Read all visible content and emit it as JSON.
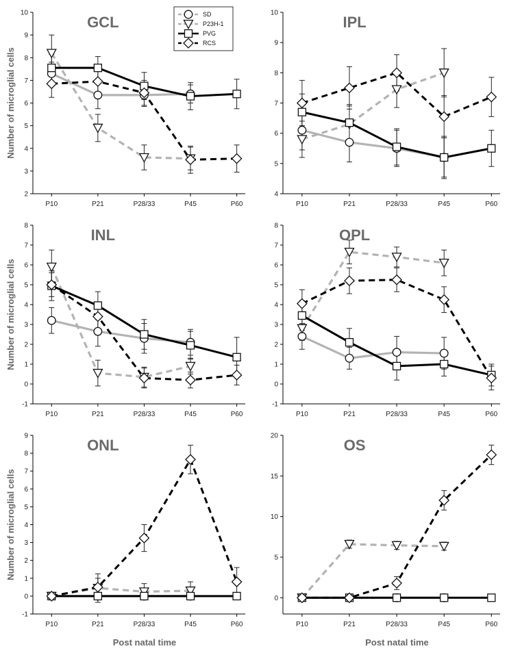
{
  "figure": {
    "categories": [
      "P10",
      "P21",
      "P28/33",
      "P45",
      "P60"
    ],
    "ylabel": "Number of microglial cells",
    "xlabel": "Post natal time"
  },
  "legend": [
    {
      "name": "SD",
      "marker": "circle",
      "color": "#b3b3b3",
      "dashed": true
    },
    {
      "name": "P23H-1",
      "marker": "triangle",
      "color": "#b3b3b3",
      "dashed": true
    },
    {
      "name": "PVG",
      "marker": "square",
      "color": "#000000",
      "dashed": false
    },
    {
      "name": "RCS",
      "marker": "diamond",
      "color": "#000000",
      "dashed": true
    }
  ],
  "chart_data": [
    {
      "type": "line",
      "title": "GCL",
      "xlabel": "",
      "ylabel": "Number of microglial cells",
      "categories": [
        "P10",
        "P21",
        "P28/33",
        "P45",
        "P60"
      ],
      "ylim": [
        2,
        10
      ],
      "yticks": [
        2,
        3,
        4,
        5,
        6,
        7,
        8,
        9,
        10
      ],
      "series": [
        {
          "name": "SD",
          "values": [
            7.3,
            6.35,
            6.35,
            6.4,
            null
          ],
          "errors": [
            0.5,
            0.6,
            0.5,
            0.4,
            null
          ]
        },
        {
          "name": "P23H-1",
          "values": [
            8.2,
            4.9,
            3.6,
            3.55,
            null
          ],
          "errors": [
            0.8,
            0.6,
            0.55,
            0.5,
            null
          ]
        },
        {
          "name": "PVG",
          "values": [
            7.55,
            7.55,
            6.75,
            6.3,
            6.4
          ],
          "errors": [
            0.6,
            0.5,
            0.6,
            0.6,
            0.65
          ]
        },
        {
          "name": "RCS",
          "values": [
            6.85,
            6.95,
            6.45,
            3.5,
            3.55
          ],
          "errors": [
            0.6,
            0.55,
            0.55,
            0.6,
            0.6
          ]
        }
      ]
    },
    {
      "type": "line",
      "title": "IPL",
      "xlabel": "",
      "ylabel": "",
      "categories": [
        "P10",
        "P21",
        "P28/33",
        "P45",
        "P60"
      ],
      "ylim": [
        4,
        10
      ],
      "yticks": [
        4,
        5,
        6,
        7,
        8,
        9,
        10
      ],
      "series": [
        {
          "name": "SD",
          "values": [
            6.1,
            5.7,
            5.5,
            5.2,
            null
          ],
          "errors": [
            0.65,
            0.65,
            0.6,
            0.7,
            null
          ]
        },
        {
          "name": "P23H-1",
          "values": [
            5.8,
            6.3,
            7.45,
            8.0,
            null
          ],
          "errors": [
            0.6,
            0.6,
            0.6,
            0.8,
            null
          ]
        },
        {
          "name": "PVG",
          "values": [
            6.7,
            6.35,
            5.55,
            5.2,
            5.5
          ],
          "errors": [
            0.6,
            0.6,
            0.6,
            0.65,
            0.6
          ]
        },
        {
          "name": "RCS",
          "values": [
            7.0,
            7.5,
            8.0,
            6.55,
            7.2
          ],
          "errors": [
            0.75,
            0.7,
            0.6,
            0.7,
            0.65
          ]
        }
      ]
    },
    {
      "type": "line",
      "title": "INL",
      "xlabel": "",
      "ylabel": "Number of microglial cells",
      "categories": [
        "P10",
        "P21",
        "P28/33",
        "P45",
        "P60"
      ],
      "ylim": [
        -1,
        8
      ],
      "yticks": [
        -1,
        0,
        1,
        2,
        3,
        4,
        5,
        6,
        7,
        8
      ],
      "series": [
        {
          "name": "SD",
          "values": [
            3.2,
            2.65,
            2.3,
            2.1,
            null
          ],
          "errors": [
            0.65,
            0.75,
            0.75,
            0.65,
            null
          ]
        },
        {
          "name": "P23H-1",
          "values": [
            5.9,
            0.55,
            0.35,
            0.9,
            null
          ],
          "errors": [
            0.85,
            0.65,
            0.5,
            0.4,
            null
          ]
        },
        {
          "name": "PVG",
          "values": [
            4.95,
            3.95,
            2.5,
            1.95,
            1.35
          ],
          "errors": [
            0.75,
            0.7,
            0.75,
            0.7,
            1.0
          ]
        },
        {
          "name": "RCS",
          "values": [
            5.0,
            3.4,
            0.3,
            0.2,
            0.45
          ],
          "errors": [
            0.6,
            0.6,
            0.5,
            0.4,
            0.5
          ]
        }
      ]
    },
    {
      "type": "line",
      "title": "OPL",
      "xlabel": "",
      "ylabel": "",
      "categories": [
        "P10",
        "P21",
        "P28/33",
        "P45",
        "P60"
      ],
      "ylim": [
        -1,
        8
      ],
      "yticks": [
        -1,
        0,
        1,
        2,
        3,
        4,
        5,
        6,
        7,
        8
      ],
      "series": [
        {
          "name": "SD",
          "values": [
            2.4,
            1.3,
            1.6,
            1.55,
            null
          ],
          "errors": [
            0.65,
            0.55,
            0.8,
            0.8,
            null
          ]
        },
        {
          "name": "P23H-1",
          "values": [
            2.8,
            6.65,
            6.4,
            6.1,
            null
          ],
          "errors": [
            0.6,
            0.6,
            0.5,
            0.65,
            null
          ]
        },
        {
          "name": "PVG",
          "values": [
            3.45,
            2.1,
            0.9,
            1.0,
            0.45
          ],
          "errors": [
            0.75,
            0.7,
            0.7,
            0.6,
            0.55
          ]
        },
        {
          "name": "RCS",
          "values": [
            4.05,
            5.2,
            5.25,
            4.25,
            0.3
          ],
          "errors": [
            0.7,
            0.65,
            0.6,
            0.65,
            0.6
          ]
        }
      ]
    },
    {
      "type": "line",
      "title": "ONL",
      "xlabel": "Post natal time",
      "ylabel": "Number of microglial cells",
      "categories": [
        "P10",
        "P21",
        "P28/33",
        "P45",
        "P60"
      ],
      "ylim": [
        -1,
        9
      ],
      "yticks": [
        -1,
        0,
        1,
        2,
        3,
        4,
        5,
        6,
        7,
        8,
        9
      ],
      "series": [
        {
          "name": "SD",
          "values": [
            0,
            0,
            0,
            0,
            null
          ],
          "errors": [
            0,
            0,
            0,
            0,
            null
          ]
        },
        {
          "name": "P23H-1",
          "values": [
            0,
            0.45,
            0.25,
            0.3,
            null
          ],
          "errors": [
            0,
            0.8,
            0.45,
            0.5,
            null
          ]
        },
        {
          "name": "PVG",
          "values": [
            0,
            0,
            0,
            0,
            0
          ],
          "errors": [
            0,
            0,
            0,
            0,
            0
          ]
        },
        {
          "name": "RCS",
          "values": [
            0,
            0.5,
            3.25,
            7.65,
            0.8
          ],
          "errors": [
            0,
            0.5,
            0.75,
            0.8,
            0.8
          ]
        }
      ]
    },
    {
      "type": "line",
      "title": "OS",
      "xlabel": "Post natal time",
      "ylabel": "",
      "categories": [
        "P10",
        "P21",
        "P28/33",
        "P45",
        "P60"
      ],
      "ylim": [
        -2,
        20
      ],
      "yticks": [
        0,
        5,
        10,
        15,
        20
      ],
      "series": [
        {
          "name": "SD",
          "values": [
            0,
            0,
            0,
            0,
            null
          ],
          "errors": [
            0,
            0,
            0,
            0,
            null
          ]
        },
        {
          "name": "P23H-1",
          "values": [
            0,
            6.6,
            6.45,
            6.35,
            null
          ],
          "errors": [
            0,
            0.5,
            0.5,
            0.5,
            null
          ]
        },
        {
          "name": "PVG",
          "values": [
            0,
            0,
            0,
            0,
            0
          ],
          "errors": [
            0,
            0,
            0,
            0,
            0
          ]
        },
        {
          "name": "RCS",
          "values": [
            0,
            0,
            1.8,
            12.0,
            17.6
          ],
          "errors": [
            0,
            0,
            0.8,
            1.2,
            1.2
          ]
        }
      ]
    }
  ]
}
